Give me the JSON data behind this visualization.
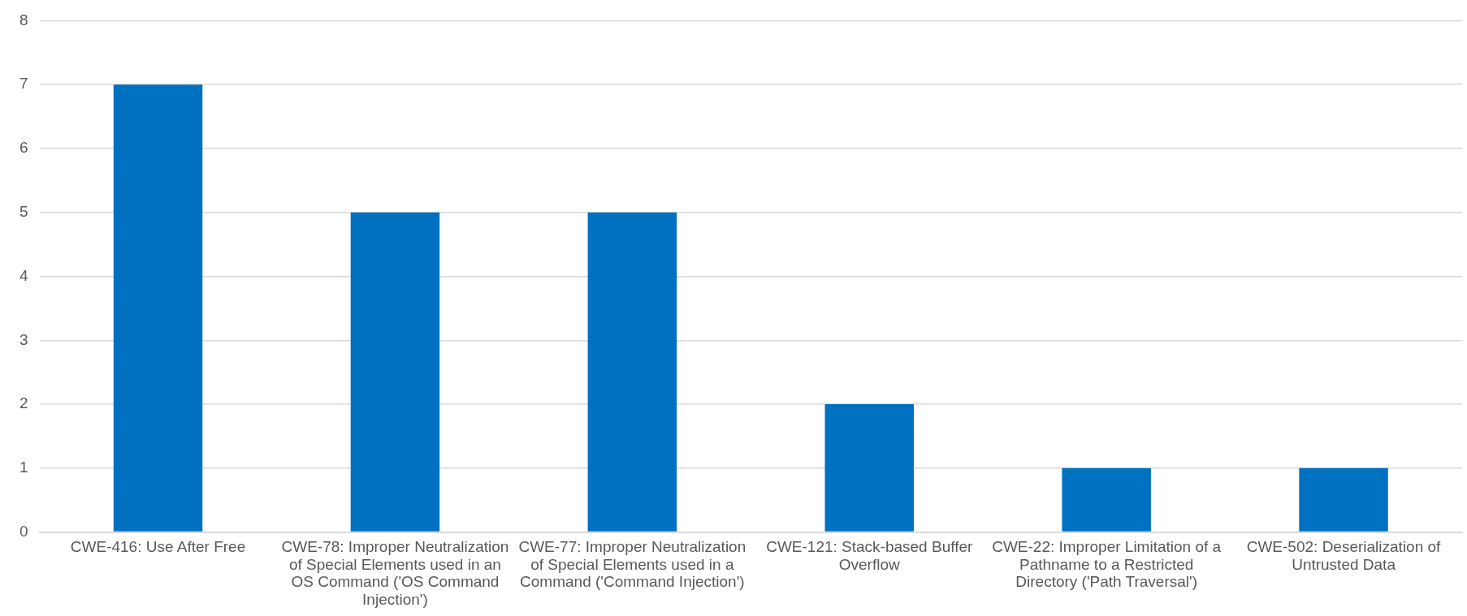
{
  "chart_data": {
    "type": "bar",
    "categories": [
      "CWE-416: Use After Free",
      "CWE-78: Improper Neutralization of Special Elements used in an OS Command ('OS Command Injection')",
      "CWE-77: Improper Neutralization of Special Elements used in a Command ('Command Injection')",
      "CWE-121: Stack-based Buffer Overflow",
      "CWE-22: Improper Limitation of a Pathname to a Restricted Directory ('Path Traversal')",
      "CWE-502: Deserialization of Untrusted Data"
    ],
    "values": [
      7,
      5,
      5,
      2,
      1,
      1
    ],
    "color": "#0070c0",
    "ylim": [
      0,
      8
    ],
    "yticks": [
      0,
      1,
      2,
      3,
      4,
      5,
      6,
      7,
      8
    ],
    "grid": "y",
    "legend": false
  }
}
